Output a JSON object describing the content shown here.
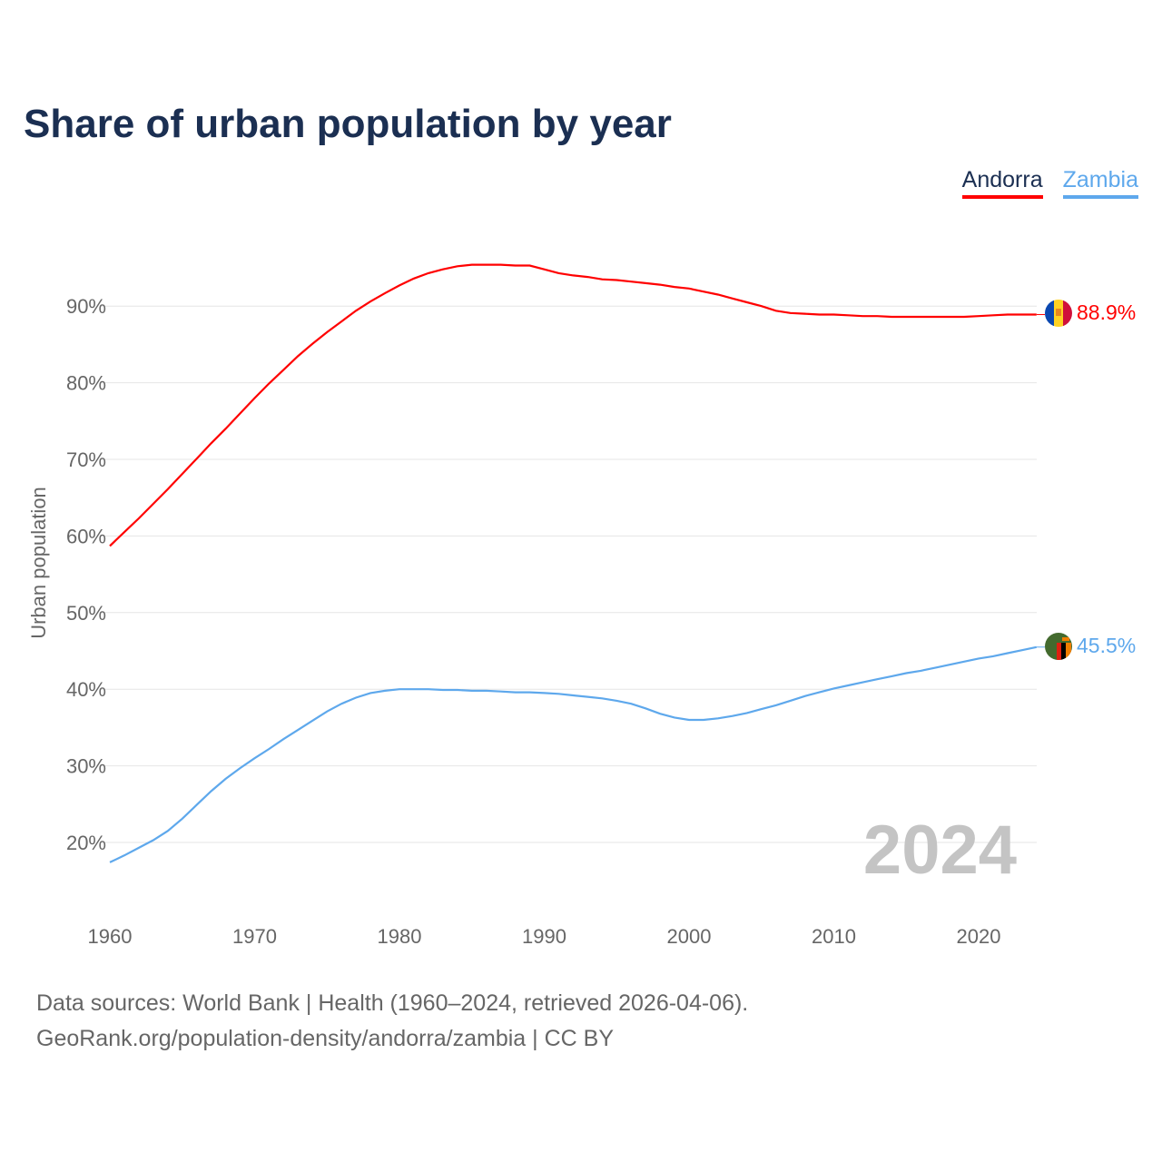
{
  "chart_data": {
    "type": "line",
    "title": "Share of urban population by year",
    "ylabel": "Urban population",
    "xlabel": "",
    "xlim": [
      1960,
      2024
    ],
    "ylim": [
      13,
      98
    ],
    "x_ticks": [
      1960,
      1970,
      1980,
      1990,
      2000,
      2010,
      2020
    ],
    "y_ticks": [
      20,
      30,
      40,
      50,
      60,
      70,
      80,
      90
    ],
    "y_tick_labels": [
      "20%",
      "30%",
      "40%",
      "50%",
      "60%",
      "70%",
      "80%",
      "90%"
    ],
    "x_tick_labels": [
      "1960",
      "1970",
      "1980",
      "1990",
      "2000",
      "2010",
      "2020"
    ],
    "grid": true,
    "legend_position": "top-right",
    "watermark_year": "2024",
    "start_year": 1960,
    "series": [
      {
        "name": "Andorra",
        "color": "#ff0000",
        "end_label": "88.9%",
        "values": [
          58.7,
          60.5,
          62.3,
          64.2,
          66.1,
          68.1,
          70.1,
          72.1,
          74.0,
          76.0,
          78.0,
          79.9,
          81.7,
          83.5,
          85.1,
          86.6,
          88.0,
          89.4,
          90.6,
          91.7,
          92.7,
          93.6,
          94.3,
          94.8,
          95.2,
          95.4,
          95.4,
          95.4,
          95.3,
          95.3,
          94.8,
          94.3,
          94.0,
          93.8,
          93.5,
          93.4,
          93.2,
          93.0,
          92.8,
          92.5,
          92.3,
          91.9,
          91.5,
          91.0,
          90.5,
          90.0,
          89.4,
          89.1,
          89.0,
          88.9,
          88.9,
          88.8,
          88.7,
          88.7,
          88.6,
          88.6,
          88.6,
          88.6,
          88.6,
          88.6,
          88.7,
          88.8,
          88.9,
          88.9,
          88.9
        ]
      },
      {
        "name": "Zambia",
        "color": "#5ea8ec",
        "end_label": "45.5%",
        "values": [
          17.4,
          18.3,
          19.3,
          20.3,
          21.5,
          23.1,
          24.9,
          26.7,
          28.3,
          29.7,
          31.0,
          32.2,
          33.5,
          34.7,
          35.9,
          37.1,
          38.1,
          38.9,
          39.5,
          39.8,
          40.0,
          40.0,
          40.0,
          39.9,
          39.9,
          39.8,
          39.8,
          39.7,
          39.6,
          39.6,
          39.5,
          39.4,
          39.2,
          39.0,
          38.8,
          38.5,
          38.1,
          37.5,
          36.8,
          36.3,
          36.0,
          36.0,
          36.2,
          36.5,
          36.9,
          37.4,
          37.9,
          38.5,
          39.1,
          39.6,
          40.1,
          40.5,
          40.9,
          41.3,
          41.7,
          42.1,
          42.4,
          42.8,
          43.2,
          43.6,
          44.0,
          44.3,
          44.7,
          45.1,
          45.5
        ]
      }
    ]
  },
  "footer": {
    "line1": "Data sources: World Bank | Health (1960–2024, retrieved 2026-04-06).",
    "line2": "GeoRank.org/population-density/andorra/zambia | CC BY"
  }
}
